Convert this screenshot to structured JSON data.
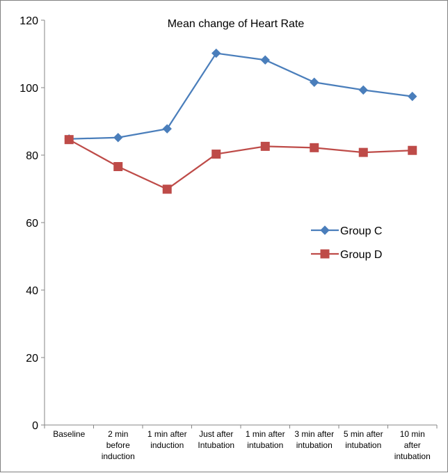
{
  "chart_data": {
    "type": "line",
    "title": "Mean change of Heart Rate",
    "xlabel": "",
    "ylabel": "",
    "ylim": [
      0,
      120
    ],
    "yticks": [
      "0",
      "20",
      "40",
      "60",
      "80",
      "100",
      "120"
    ],
    "grid": false,
    "legend_position": "right",
    "categories": [
      [
        "Baseline"
      ],
      [
        "2 min",
        "before",
        "induction"
      ],
      [
        "1 min after",
        "induction"
      ],
      [
        "Just after",
        "Intubation"
      ],
      [
        "1 min after",
        "intubation"
      ],
      [
        "3 min after",
        "intubation"
      ],
      [
        "5 min after",
        "intubation"
      ],
      [
        "10 min",
        "after",
        "intubation"
      ]
    ],
    "series": [
      {
        "name": "Group C",
        "color": "#4a7ebb",
        "marker": "diamond",
        "values": [
          84.8,
          85.2,
          87.8,
          110.2,
          108.2,
          101.6,
          99.3,
          97.4
        ]
      },
      {
        "name": "Group D",
        "color": "#be4b48",
        "marker": "square",
        "values": [
          84.6,
          76.6,
          69.9,
          80.3,
          82.6,
          82.2,
          80.8,
          81.4
        ]
      }
    ]
  }
}
